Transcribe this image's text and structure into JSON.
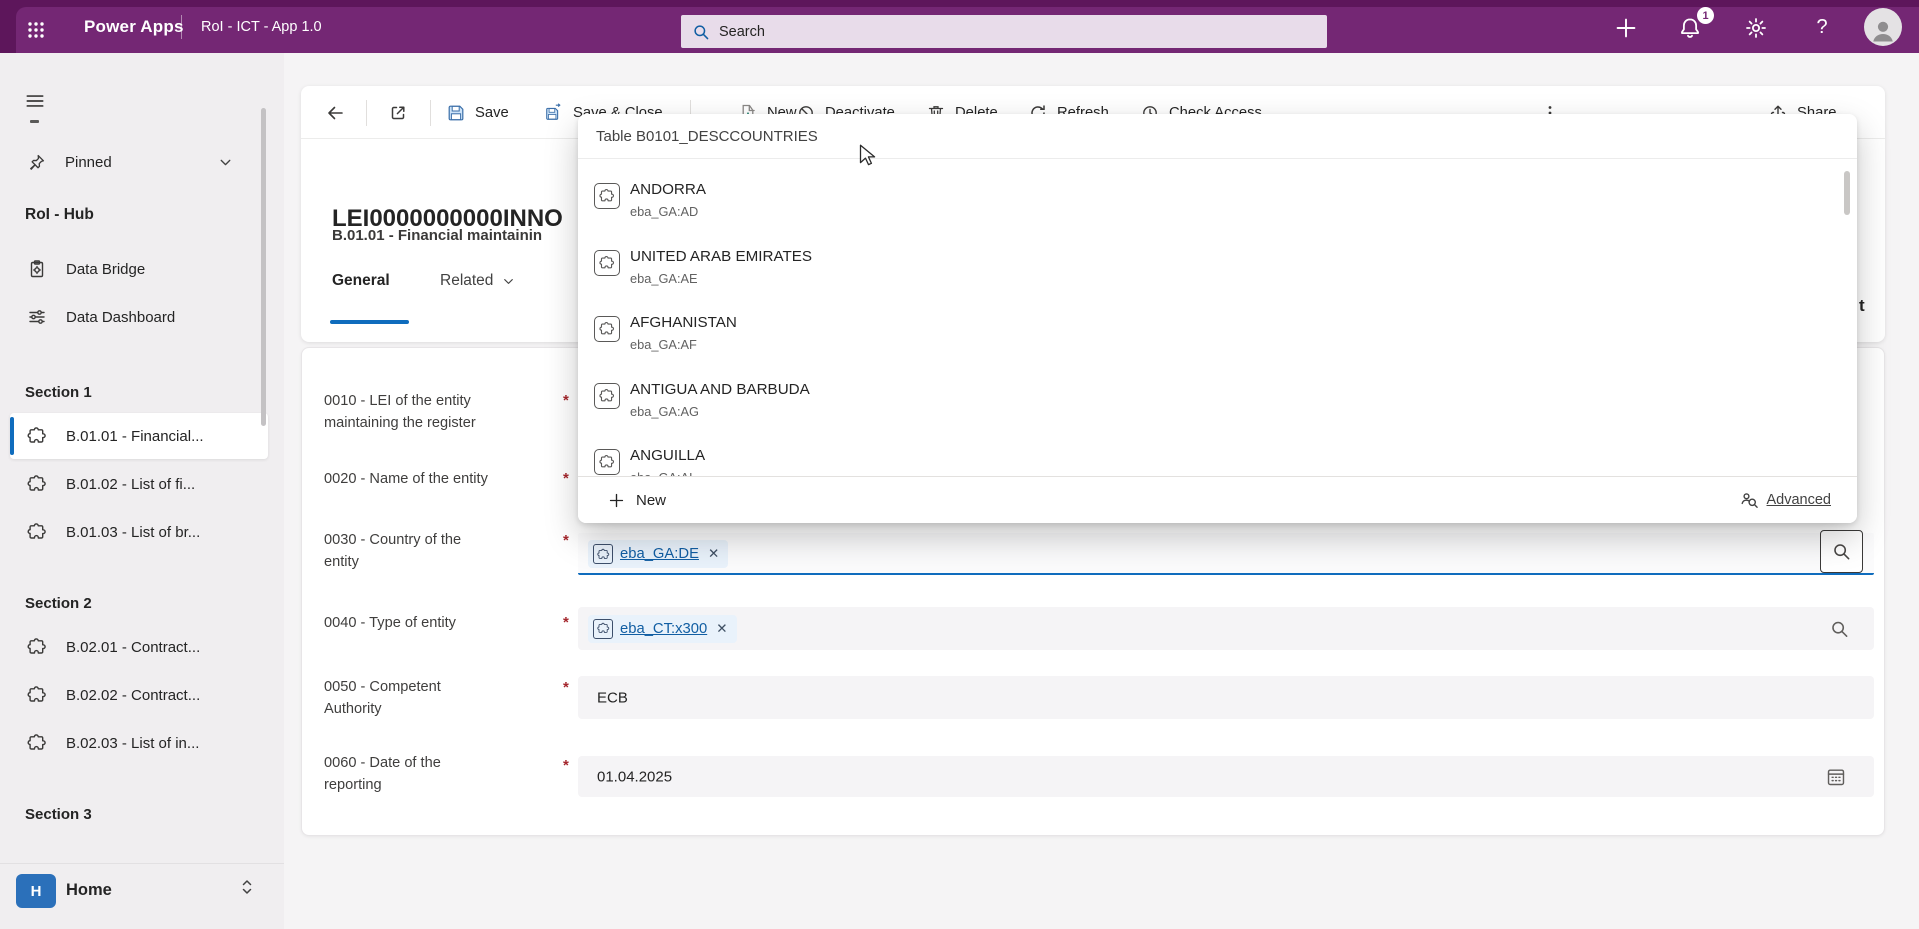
{
  "topbar": {
    "brand": "Power Apps",
    "app_title": "RoI - ICT - App 1.0",
    "search_placeholder": "Search",
    "notification_count": "1",
    "help_glyph": "?"
  },
  "sidebar": {
    "pinned_label": "Pinned",
    "hub_title": "RoI - Hub",
    "hub_items": [
      {
        "label": "Data Bridge",
        "icon": "clipboard"
      },
      {
        "label": "Data Dashboard",
        "icon": "sliders"
      }
    ],
    "sections": [
      {
        "title": "Section 1",
        "items": [
          {
            "label": "B.01.01 - Financial...",
            "selected": true
          },
          {
            "label": "B.01.02 - List of fi...",
            "selected": false
          },
          {
            "label": "B.01.03 - List of br...",
            "selected": false
          }
        ]
      },
      {
        "title": "Section 2",
        "items": [
          {
            "label": "B.02.01 - Contract...",
            "selected": false
          },
          {
            "label": "B.02.02 - Contract...",
            "selected": false
          },
          {
            "label": "B.02.03 - List of in...",
            "selected": false
          }
        ]
      },
      {
        "title": "Section 3",
        "items": []
      }
    ],
    "home_label": "Home",
    "home_badge": "H"
  },
  "toolbar": {
    "items": [
      {
        "icon": "back-arrow",
        "label": "",
        "name": "back"
      },
      {
        "icon": "open-in-new",
        "label": "",
        "name": "open-in-new"
      },
      {
        "icon": "save",
        "label": "Save",
        "name": "save"
      },
      {
        "icon": "save-close",
        "label": "Save & Close",
        "name": "save-and-close"
      },
      {
        "icon": "new-record",
        "label": "New",
        "name": "new"
      },
      {
        "icon": "deactivate",
        "label": "Deactivate",
        "name": "deactivate"
      },
      {
        "icon": "delete",
        "label": "Delete",
        "name": "delete"
      },
      {
        "icon": "refresh",
        "label": "Refresh",
        "name": "refresh"
      },
      {
        "icon": "check-access",
        "label": "Check Access",
        "name": "check-access"
      },
      {
        "icon": "more-vertical",
        "label": "",
        "name": "more-commands"
      },
      {
        "icon": "share",
        "label": "Share",
        "name": "share"
      }
    ]
  },
  "record": {
    "title": "LEI0000000000INNO",
    "subtitle": "B.01.01 - Financial maintainin",
    "tabs": [
      {
        "label": "General",
        "selected": true
      },
      {
        "label": "Related",
        "selected": false
      }
    ],
    "clipped_fragment": "t"
  },
  "form": {
    "required_marker": "*",
    "close_glyph": "✕",
    "fields": [
      {
        "id": "0010",
        "label_lines": [
          "0010 - LEI of the entity",
          "maintaining the register"
        ],
        "required": true,
        "control": "hidden",
        "value": ""
      },
      {
        "id": "0020",
        "label_lines": [
          "0020 - Name of the entity"
        ],
        "required": true,
        "control": "hidden",
        "value": ""
      },
      {
        "id": "0030",
        "label_lines": [
          "0030 - Country of the",
          "entity"
        ],
        "required": true,
        "control": "lookup",
        "tag": "eba_GA:DE",
        "focused": true
      },
      {
        "id": "0040",
        "label_lines": [
          "0040 - Type of entity"
        ],
        "required": true,
        "control": "lookup",
        "tag": "eba_CT:x300",
        "focused": false
      },
      {
        "id": "0050",
        "label_lines": [
          "0050 - Competent",
          "Authority"
        ],
        "required": true,
        "control": "text",
        "value": "ECB"
      },
      {
        "id": "0060",
        "label_lines": [
          "0060 - Date of the",
          "reporting"
        ],
        "required": true,
        "control": "date",
        "value": "01.04.2025"
      }
    ]
  },
  "lookup_flyout": {
    "table_header": "Table B0101_DESCCOUNTRIES",
    "options": [
      {
        "name": "ANDORRA",
        "code": "eba_GA:AD"
      },
      {
        "name": "UNITED ARAB EMIRATES",
        "code": "eba_GA:AE"
      },
      {
        "name": "AFGHANISTAN",
        "code": "eba_GA:AF"
      },
      {
        "name": "ANTIGUA AND BARBUDA",
        "code": "eba_GA:AG"
      },
      {
        "name": "ANGUILLA",
        "code": "eba_GA:AI"
      }
    ],
    "new_label": "New",
    "advanced_label": "Advanced"
  },
  "colors": {
    "brand_purple": "#742774",
    "accent_blue": "#0f6cbd",
    "link_blue": "#115ea3",
    "required_red": "#a4262c",
    "home_icon_blue": "#2b70ba",
    "tag_background": "#e9f2fb"
  }
}
